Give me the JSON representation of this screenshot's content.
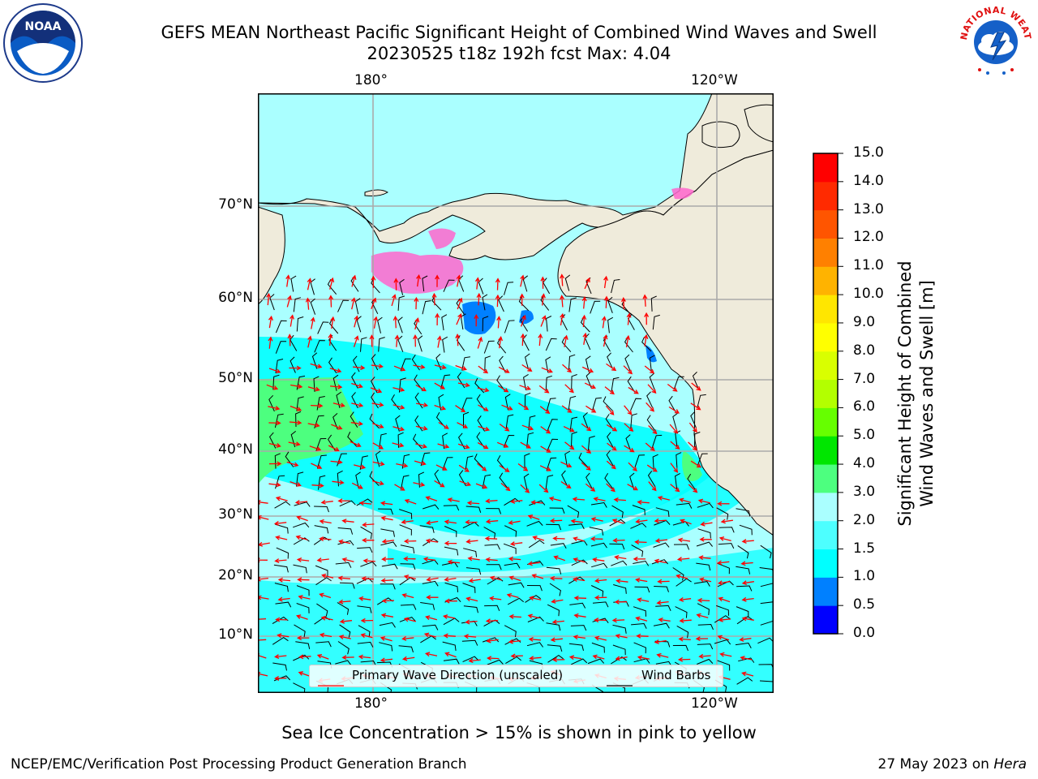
{
  "header": {
    "title_line1": "GEFS MEAN Northeast Pacific Significant Height of Combined Wind Waves and Swell",
    "title_line2": "20230525 t18z 192h fcst   Max: 4.04"
  },
  "logos": {
    "left": "NOAA",
    "right": "NATIONAL WEATHER SERVICE"
  },
  "map": {
    "lon_labels_top": [
      "180°",
      "120°W"
    ],
    "lon_labels_bottom": [
      "180°",
      "120°W"
    ],
    "lat_labels": [
      "70°N",
      "60°N",
      "50°N",
      "40°N",
      "30°N",
      "20°N",
      "10°N"
    ],
    "land_color": "#efebdb",
    "ocean_base_color": "#aaffff",
    "strong_sea_color": "#00ffff",
    "high_sea_color": "#4dff7f",
    "coastal_color": "#0080ff",
    "ice_color": "#ff66cc",
    "wave_arrow_color": "#ff0000",
    "wind_barb_color": "#000000"
  },
  "legend": {
    "wave_direction": "Primary Wave Direction (unscaled)",
    "wind_barbs": "Wind Barbs"
  },
  "colorbar": {
    "label_line1": "Significant Height of Combined",
    "label_line2": "Wind Waves and Swell [m]",
    "ticks": [
      "15.0",
      "14.0",
      "13.0",
      "12.0",
      "11.0",
      "10.0",
      "9.0",
      "8.0",
      "7.0",
      "6.0",
      "5.0",
      "4.0",
      "3.0",
      "2.0",
      "1.5",
      "1.0",
      "0.5",
      "0.0"
    ],
    "colors": [
      "#0000ff",
      "#0080ff",
      "#00ffff",
      "#4dffff",
      "#aaffff",
      "#4dff7f",
      "#00e600",
      "#66ff00",
      "#b3ff00",
      "#d9ff00",
      "#ffff00",
      "#ffe600",
      "#ffb300",
      "#ff8000",
      "#ff5500",
      "#ff2a00",
      "#ff0000"
    ]
  },
  "footer": {
    "note": "Sea Ice Concentration > 15% is shown in pink to yellow",
    "left": "NCEP/EMC/Verification Post Processing Product Generation Branch",
    "date": "27 May 2023 on ",
    "host": "Hera"
  }
}
